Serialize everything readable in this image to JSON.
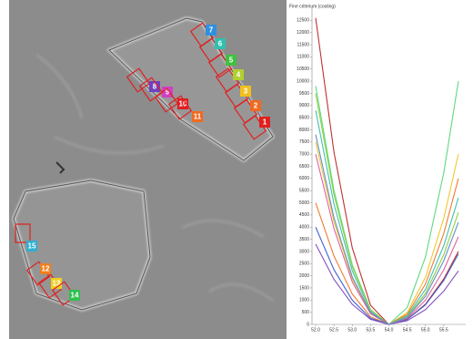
{
  "image": {
    "markers": [
      {
        "label": "1",
        "color": "#e02020"
      },
      {
        "label": "2",
        "color": "#f06a20"
      },
      {
        "label": "3",
        "color": "#f0c020"
      },
      {
        "label": "4",
        "color": "#b0d030"
      },
      {
        "label": "5",
        "color": "#40c040"
      },
      {
        "label": "6",
        "color": "#30c0b0"
      },
      {
        "label": "7",
        "color": "#3090e0"
      },
      {
        "label": "8",
        "color": "#7040c0"
      },
      {
        "label": "9",
        "color": "#d040c0"
      },
      {
        "label": "10",
        "color": "#e02020"
      },
      {
        "label": "11",
        "color": "#f06a20"
      },
      {
        "label": "12",
        "color": "#f08020"
      },
      {
        "label": "13",
        "color": "#f0d020"
      },
      {
        "label": "14",
        "color": "#30c050"
      },
      {
        "label": "15",
        "color": "#30b0d0"
      }
    ]
  },
  "chart_data": {
    "type": "line",
    "title": "Fine criterium (cooling)",
    "x": [
      52.0,
      52.5,
      53.0,
      53.5,
      54.0,
      54.5,
      55.0,
      55.5,
      55.9
    ],
    "series": [
      {
        "color": "#c03030",
        "values": [
          12600,
          7088,
          3150,
          788,
          0,
          208,
          831,
          1870,
          3000
        ]
      },
      {
        "color": "#5fd880",
        "values": [
          9800,
          5513,
          2450,
          613,
          0,
          693,
          2770,
          6233,
          10000
        ]
      },
      {
        "color": "#f0c830",
        "values": [
          7500,
          4219,
          1875,
          469,
          0,
          485,
          1939,
          4363,
          7000
        ]
      },
      {
        "color": "#f07a30",
        "values": [
          5000,
          2813,
          1250,
          313,
          0,
          416,
          1662,
          3740,
          6000
        ]
      },
      {
        "color": "#40c0b0",
        "values": [
          8800,
          4950,
          2200,
          550,
          0,
          360,
          1440,
          3241,
          5200
        ]
      },
      {
        "color": "#90d040",
        "values": [
          9500,
          5344,
          2375,
          594,
          0,
          319,
          1274,
          2867,
          4600
        ]
      },
      {
        "color": "#4060d0",
        "values": [
          4000,
          2250,
          1000,
          250,
          0,
          201,
          803,
          1807,
          2900
        ]
      },
      {
        "color": "#8050c0",
        "values": [
          3300,
          1856,
          825,
          206,
          0,
          152,
          609,
          1371,
          2200
        ]
      },
      {
        "color": "#e060a0",
        "values": [
          7000,
          3938,
          1750,
          438,
          0,
          250,
          997,
          2244,
          3600
        ]
      },
      {
        "color": "#6090c8",
        "values": [
          7800,
          4388,
          1950,
          488,
          0,
          291,
          1163,
          2618,
          4200
        ]
      }
    ],
    "xlim": [
      51.9,
      56.1
    ],
    "ylim": [
      0,
      13000
    ],
    "xticks": [
      {
        "value": 52,
        "label": "52.0"
      },
      {
        "value": 52.5,
        "label": "52.5"
      },
      {
        "value": 53,
        "label": "53.0"
      },
      {
        "value": 53.5,
        "label": "53.5"
      },
      {
        "value": 54,
        "label": "54.0"
      },
      {
        "value": 54.5,
        "label": "54.5"
      },
      {
        "value": 55,
        "label": "55.0"
      },
      {
        "value": 55.5,
        "label": "55.5"
      }
    ],
    "yticks": [
      0,
      500,
      1000,
      1500,
      2000,
      2500,
      3000,
      3500,
      4000,
      4500,
      5000,
      5500,
      6000,
      6500,
      7000,
      7500,
      8000,
      8500,
      9000,
      9500,
      10000,
      10500,
      11000,
      11500,
      12000,
      12500
    ]
  }
}
